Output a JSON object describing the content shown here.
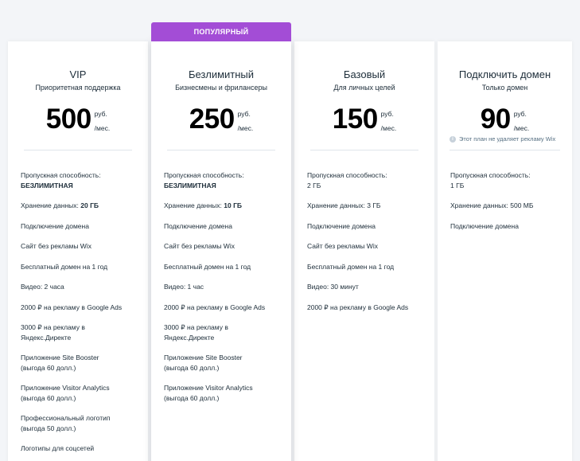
{
  "ribbon": "ПОПУЛЯРНЫЙ",
  "plans": [
    {
      "name": "VIP",
      "subtitle": "Приоритетная поддержка",
      "price": "500",
      "currency": "руб.",
      "period": "/мес.",
      "features": [
        {
          "label": "Пропускная способность:",
          "value": "БЕЗЛИМИТНАЯ"
        },
        {
          "label": "Хранение данных:",
          "value": "20 ГБ"
        },
        {
          "label": "Подключение домена"
        },
        {
          "label": "Сайт без рекламы Wix"
        },
        {
          "label": "Бесплатный домен на 1 год"
        },
        {
          "label": "Видео: 2 часа"
        },
        {
          "label": "2000 ₽ на рекламу в Google Ads"
        },
        {
          "label": "3000 ₽ на рекламу в",
          "line2": "Яндекс.Директе"
        },
        {
          "label": "Приложение Site Booster",
          "line2": "(выгода 60 долл.)"
        },
        {
          "label": "Приложение Visitor Analytics",
          "line2": "(выгода 60 долл.)"
        },
        {
          "label": "Профессиональный логотип",
          "line2": "(выгода 50 долл.)"
        },
        {
          "label": "Логотипы для соцсетей"
        }
      ]
    },
    {
      "name": "Безлимитный",
      "subtitle": "Бизнесмены и фрилансеры",
      "price": "250",
      "currency": "руб.",
      "period": "/мес.",
      "features": [
        {
          "label": "Пропускная способность:",
          "value": "БЕЗЛИМИТНАЯ"
        },
        {
          "label": "Хранение данных:",
          "value": "10 ГБ"
        },
        {
          "label": "Подключение домена"
        },
        {
          "label": "Сайт без рекламы Wix"
        },
        {
          "label": "Бесплатный домен на 1 год"
        },
        {
          "label": "Видео: 1 час"
        },
        {
          "label": "2000 ₽ на рекламу в Google Ads"
        },
        {
          "label": "3000 ₽ на рекламу в",
          "line2": "Яндекс.Директе"
        },
        {
          "label": "Приложение Site Booster",
          "line2": "(выгода 60 долл.)"
        },
        {
          "label": "Приложение Visitor Analytics",
          "line2": "(выгода 60 долл.)"
        }
      ]
    },
    {
      "name": "Базовый",
      "subtitle": "Для личных целей",
      "price": "150",
      "currency": "руб.",
      "period": "/мес.",
      "features": [
        {
          "label": "Пропускная способность:",
          "line2": "2 ГБ"
        },
        {
          "label": "Хранение данных: 3 ГБ"
        },
        {
          "label": "Подключение домена"
        },
        {
          "label": "Сайт без рекламы Wix"
        },
        {
          "label": "Бесплатный домен на 1 год"
        },
        {
          "label": "Видео: 30 минут"
        },
        {
          "label": "2000 ₽ на рекламу в Google Ads"
        }
      ]
    },
    {
      "name": "Подключить домен",
      "subtitle": "Только домен",
      "price": "90",
      "currency": "руб.",
      "period": "/мес.",
      "notice": "Этот план не удаляет рекламу Wix",
      "features": [
        {
          "label": "Пропускная способность:",
          "line2": "1 ГБ"
        },
        {
          "label": "Хранение данных: 500 МБ"
        },
        {
          "label": "Подключение домена"
        }
      ]
    }
  ]
}
